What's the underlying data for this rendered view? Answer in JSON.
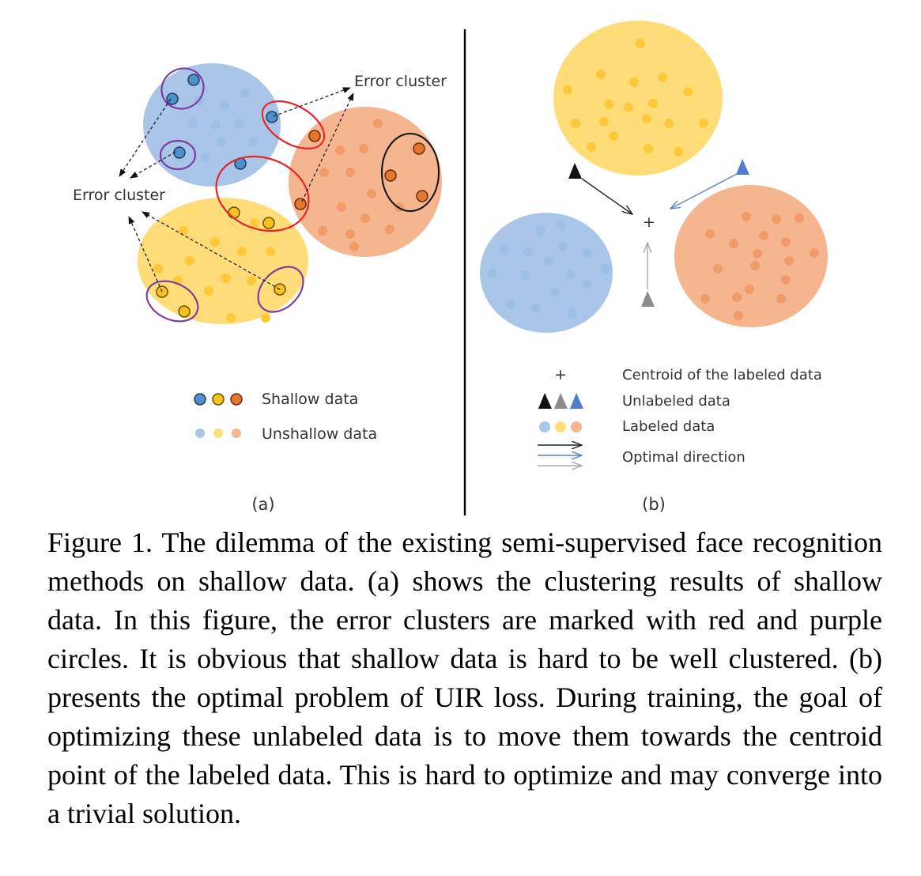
{
  "panel_a": {
    "error_cluster_top": "Error cluster",
    "error_cluster_left": "Error cluster",
    "legend_shallow": "Shallow data",
    "legend_unshallow": "Unshallow data",
    "sublabel": "(a)"
  },
  "panel_b": {
    "centroid_symbol": "+",
    "legend_centroid": "Centroid of the labeled data",
    "legend_unlabeled": "Unlabeled data",
    "legend_labeled": "Labeled data",
    "legend_optimal": "Optimal direction",
    "sublabel": "(b)"
  },
  "colors": {
    "blue_cluster": "#a9c6e8",
    "blue_point": "#9dbfe5",
    "yellow_cluster": "#fedd78",
    "yellow_point": "#fdc93a",
    "orange_cluster": "#f4b58f",
    "orange_point": "#f09c6a",
    "blue_shallow": "#4f8fcc",
    "yellow_shallow": "#f7c21c",
    "orange_shallow": "#e4762f",
    "error_red": "#e8232b",
    "error_purple": "#7b3fa3"
  },
  "caption": "Figure 1. The dilemma of the existing semi-supervised face recognition methods on shallow data. (a) shows the clustering results of shallow data. In this figure, the error clusters are marked with red and purple circles. It is obvious that shallow data is hard to be well clustered. (b) presents the optimal problem of UIR loss. During training, the goal of optimizing these unlabeled data is to move them towards the centroid point of the labeled data. This is hard to optimize and may converge into a trivial solution."
}
